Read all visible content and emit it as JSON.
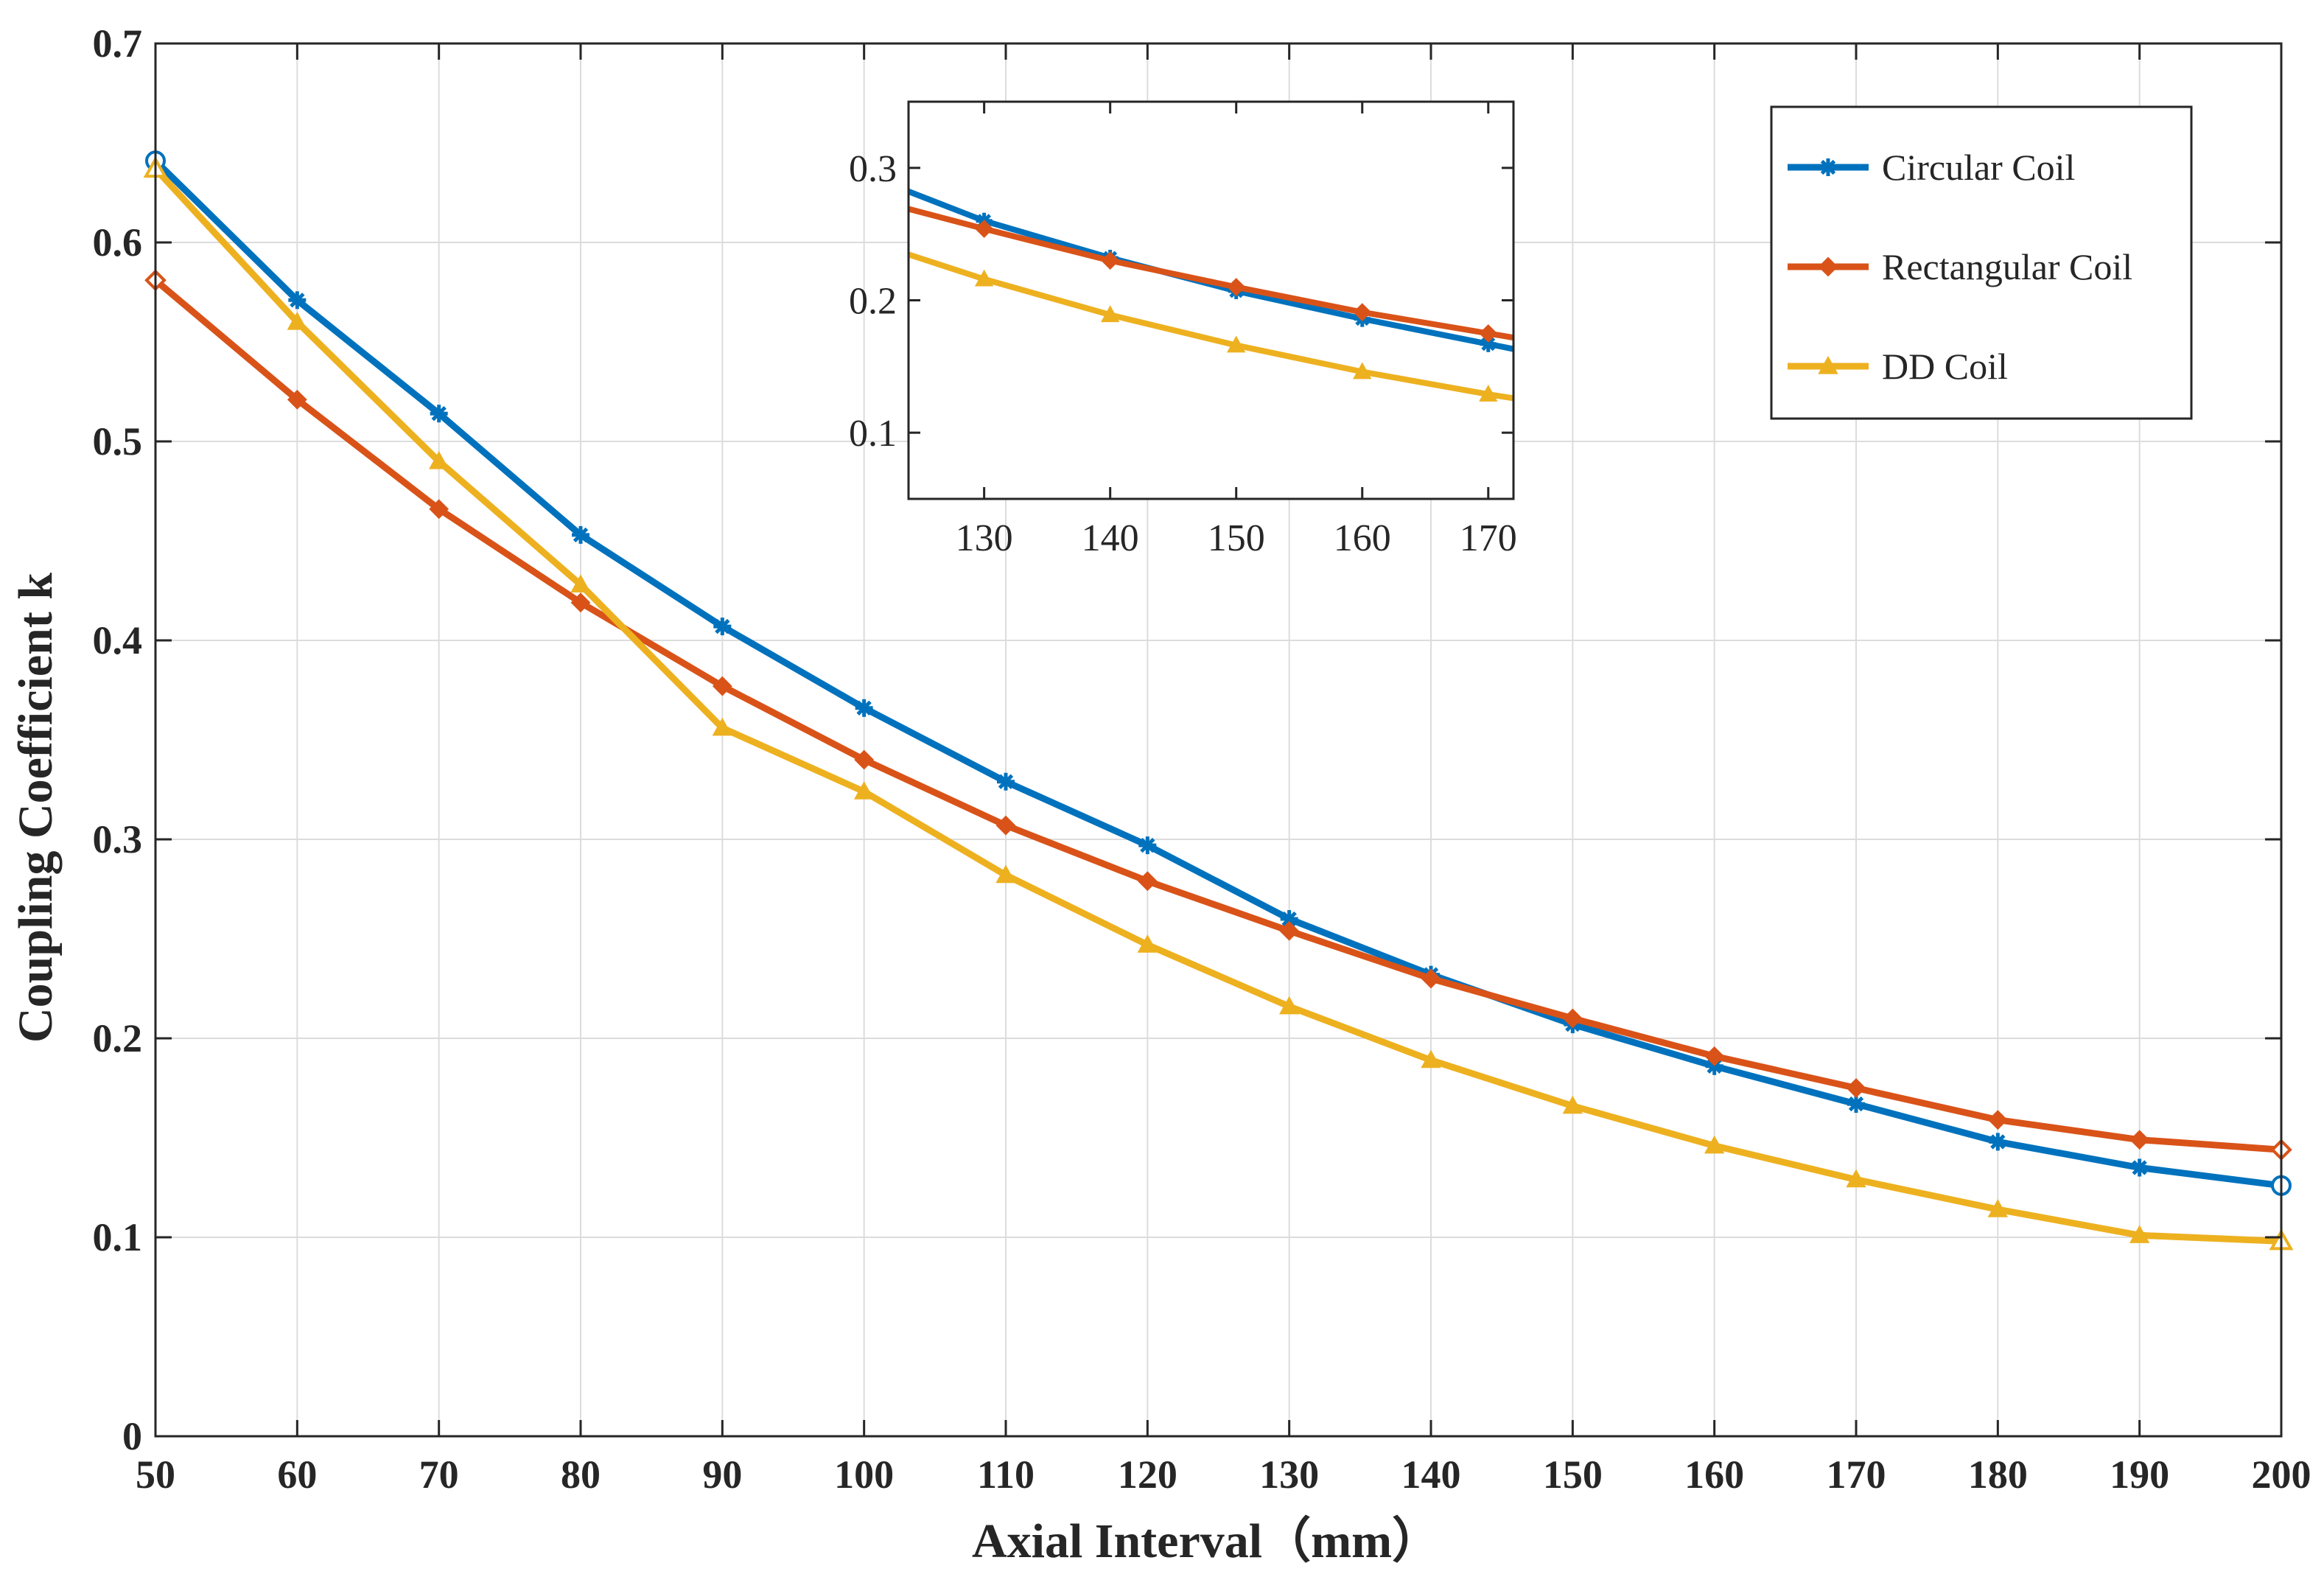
{
  "chart_data": {
    "type": "line",
    "xlabel": "Axial Interval（mm）",
    "ylabel": "Coupling Coefficient k",
    "xlim": [
      50,
      200
    ],
    "ylim": [
      0,
      0.7
    ],
    "xticks": [
      50,
      60,
      70,
      80,
      90,
      100,
      110,
      120,
      130,
      140,
      150,
      160,
      170,
      180,
      190,
      200
    ],
    "yticks": [
      0,
      0.1,
      0.2,
      0.3,
      0.4,
      0.5,
      0.6,
      0.7
    ],
    "grid": true,
    "legend_position": "top-right",
    "x": [
      50,
      60,
      70,
      80,
      90,
      100,
      110,
      120,
      130,
      140,
      150,
      160,
      170,
      180,
      190,
      200
    ],
    "series": [
      {
        "name": "Circular Coil",
        "color": "#0072BD",
        "marker": "asterisk",
        "values": [
          0.641,
          0.571,
          0.514,
          0.453,
          0.407,
          0.366,
          0.329,
          0.297,
          0.26,
          0.232,
          0.207,
          0.186,
          0.167,
          0.148,
          0.135,
          0.126
        ]
      },
      {
        "name": "Rectangular Coil",
        "color": "#D95319",
        "marker": "diamond",
        "values": [
          0.581,
          0.521,
          0.466,
          0.419,
          0.377,
          0.34,
          0.307,
          0.279,
          0.254,
          0.23,
          0.21,
          0.191,
          0.175,
          0.159,
          0.149,
          0.144
        ]
      },
      {
        "name": "DD Coil",
        "color": "#EDB120",
        "marker": "triangle",
        "values": [
          0.637,
          0.56,
          0.49,
          0.428,
          0.356,
          0.324,
          0.282,
          0.247,
          0.216,
          0.189,
          0.166,
          0.146,
          0.129,
          0.114,
          0.101,
          0.098
        ]
      }
    ],
    "inset": {
      "xlim": [
        124,
        172
      ],
      "ylim": [
        0.05,
        0.35
      ],
      "xticks": [
        130,
        140,
        150,
        160,
        170
      ],
      "yticks": [
        0.1,
        0.2,
        0.3
      ],
      "grid": false
    }
  }
}
